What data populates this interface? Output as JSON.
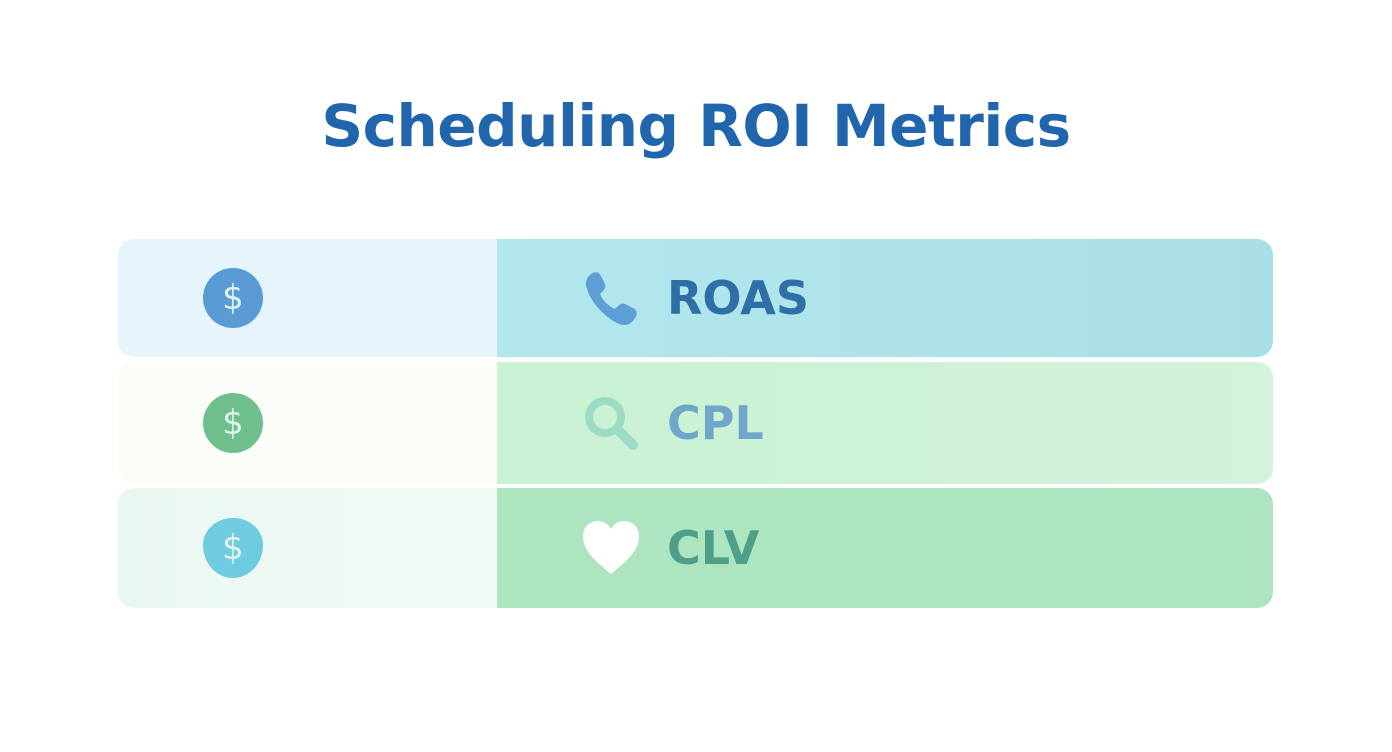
{
  "title": "Scheduling ROI Metrics",
  "colors": {
    "title": "#2166ac"
  },
  "rows": [
    {
      "left_icon": "dollar-coin-icon",
      "icon": "phone-icon",
      "label": "ROAS",
      "left_bg": "#e6f5fb",
      "right_bg": "#b3e6ec",
      "coin": "#5b9bd5",
      "label_color": "#2f6fa8"
    },
    {
      "left_icon": "dollar-coin-icon",
      "icon": "magnifier-icon",
      "label": "CPL",
      "left_bg": "#fbfdf8",
      "right_bg": "#cdf2d6",
      "coin": "#6fbf8c",
      "label_color": "#6fa6c9"
    },
    {
      "left_icon": "dollar-coin-icon",
      "icon": "heart-icon",
      "label": "CLV",
      "left_bg": "#eef9f3",
      "right_bg": "#ade5c0",
      "coin": "#6fcbe0",
      "label_color": "#4f9e8a"
    }
  ],
  "dollar_sign": "$"
}
